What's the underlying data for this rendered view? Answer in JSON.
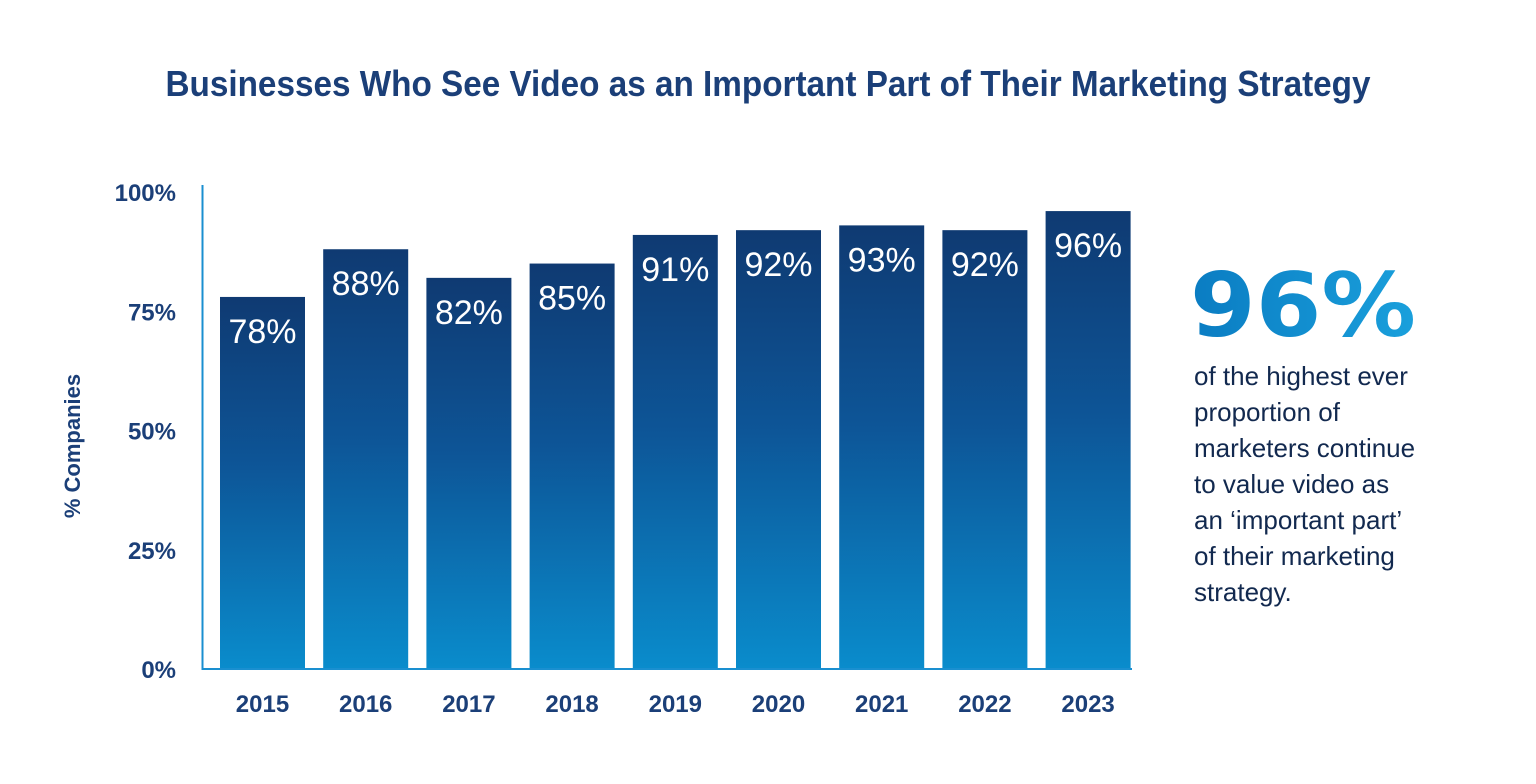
{
  "chart_data": {
    "type": "bar",
    "title": "Businesses Who See Video as an Important Part of Their Marketing Strategy",
    "ylabel": "% Companies",
    "xlabel": "",
    "categories": [
      "2015",
      "2016",
      "2017",
      "2018",
      "2019",
      "2020",
      "2021",
      "2022",
      "2023"
    ],
    "values": [
      78,
      88,
      82,
      85,
      91,
      92,
      93,
      92,
      96
    ],
    "value_labels": [
      "78%",
      "88%",
      "82%",
      "85%",
      "91%",
      "92%",
      "93%",
      "92%",
      "96%"
    ],
    "yticks": [
      {
        "value": 0,
        "label": "0%"
      },
      {
        "value": 25,
        "label": "25%"
      },
      {
        "value": 50,
        "label": "50%"
      },
      {
        "value": 75,
        "label": "75%"
      },
      {
        "value": 100,
        "label": "100%"
      }
    ],
    "ylim": [
      0,
      100
    ],
    "grid": false,
    "legend": "none",
    "colors": {
      "bar_top": "#0f3a72",
      "bar_bottom": "#0a8ccc",
      "text": "#1b3f78",
      "axis": "#1a8fd0"
    }
  },
  "callout": {
    "stat": "96%",
    "lines": [
      "of the highest ever",
      "proportion of",
      "marketers continue",
      "to value video as",
      "an ‘important part’",
      "of their marketing",
      "strategy."
    ]
  }
}
